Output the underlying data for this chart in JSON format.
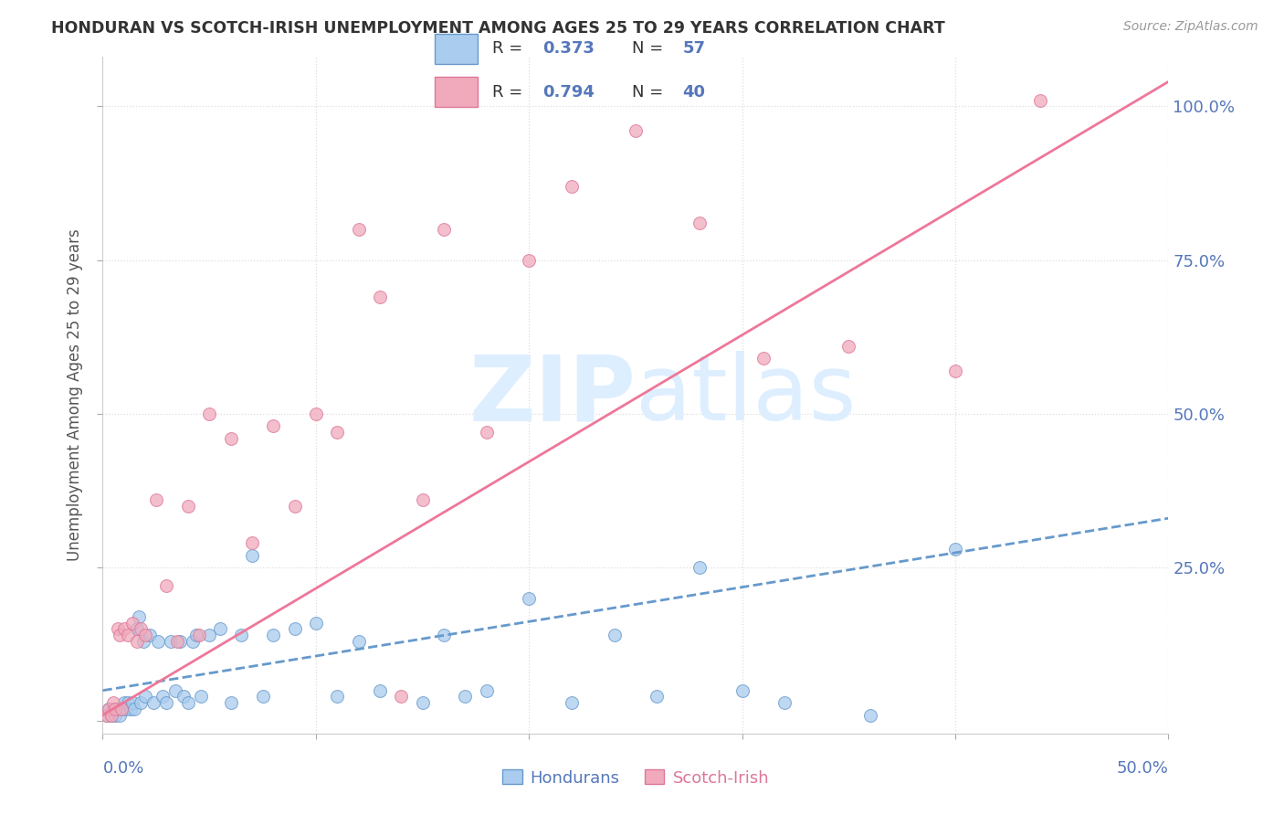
{
  "title": "HONDURAN VS SCOTCH-IRISH UNEMPLOYMENT AMONG AGES 25 TO 29 YEARS CORRELATION CHART",
  "source": "Source: ZipAtlas.com",
  "ylabel": "Unemployment Among Ages 25 to 29 years",
  "xlim": [
    0.0,
    0.5
  ],
  "ylim": [
    -0.02,
    1.08
  ],
  "yticks": [
    0.0,
    0.25,
    0.5,
    0.75,
    1.0
  ],
  "ytick_labels": [
    "",
    "25.0%",
    "50.0%",
    "75.0%",
    "100.0%"
  ],
  "legend_r1": "R = 0.373",
  "legend_n1": "N = 57",
  "legend_r2": "R = 0.794",
  "legend_n2": "N = 40",
  "hondurans_color": "#aaccee",
  "scotch_color": "#f0aabb",
  "hondurans_edge_color": "#6699cc",
  "scotch_edge_color": "#dd7799",
  "hondurans_line_color": "#6699cc",
  "scotch_line_color": "#ee7799",
  "watermark_color": "#ddeeff",
  "background_color": "#ffffff",
  "grid_color": "#dddddd",
  "title_color": "#333333",
  "source_color": "#999999",
  "axis_label_color": "#5577bb",
  "hondurans_x": [
    0.002,
    0.003,
    0.004,
    0.005,
    0.006,
    0.007,
    0.008,
    0.009,
    0.01,
    0.011,
    0.012,
    0.013,
    0.014,
    0.015,
    0.016,
    0.017,
    0.018,
    0.019,
    0.02,
    0.022,
    0.024,
    0.026,
    0.028,
    0.03,
    0.032,
    0.034,
    0.036,
    0.038,
    0.04,
    0.042,
    0.044,
    0.046,
    0.05,
    0.055,
    0.06,
    0.065,
    0.07,
    0.075,
    0.08,
    0.09,
    0.1,
    0.11,
    0.12,
    0.13,
    0.15,
    0.16,
    0.17,
    0.18,
    0.2,
    0.22,
    0.24,
    0.26,
    0.28,
    0.3,
    0.32,
    0.36,
    0.4
  ],
  "hondurans_y": [
    0.01,
    0.02,
    0.01,
    0.02,
    0.01,
    0.02,
    0.01,
    0.02,
    0.03,
    0.02,
    0.03,
    0.02,
    0.03,
    0.02,
    0.15,
    0.17,
    0.03,
    0.13,
    0.04,
    0.14,
    0.03,
    0.13,
    0.04,
    0.03,
    0.13,
    0.05,
    0.13,
    0.04,
    0.03,
    0.13,
    0.14,
    0.04,
    0.14,
    0.15,
    0.03,
    0.14,
    0.27,
    0.04,
    0.14,
    0.15,
    0.16,
    0.04,
    0.13,
    0.05,
    0.03,
    0.14,
    0.04,
    0.05,
    0.2,
    0.03,
    0.14,
    0.04,
    0.25,
    0.05,
    0.03,
    0.01,
    0.28
  ],
  "scotch_x": [
    0.002,
    0.003,
    0.004,
    0.005,
    0.006,
    0.007,
    0.008,
    0.009,
    0.01,
    0.012,
    0.014,
    0.016,
    0.018,
    0.02,
    0.025,
    0.03,
    0.035,
    0.04,
    0.045,
    0.05,
    0.06,
    0.07,
    0.08,
    0.09,
    0.1,
    0.11,
    0.12,
    0.13,
    0.14,
    0.15,
    0.16,
    0.18,
    0.2,
    0.22,
    0.25,
    0.28,
    0.31,
    0.35,
    0.4,
    0.44
  ],
  "scotch_y": [
    0.01,
    0.02,
    0.01,
    0.03,
    0.02,
    0.15,
    0.14,
    0.02,
    0.15,
    0.14,
    0.16,
    0.13,
    0.15,
    0.14,
    0.36,
    0.22,
    0.13,
    0.35,
    0.14,
    0.5,
    0.46,
    0.29,
    0.48,
    0.35,
    0.5,
    0.47,
    0.8,
    0.69,
    0.04,
    0.36,
    0.8,
    0.47,
    0.75,
    0.87,
    0.96,
    0.81,
    0.59,
    0.61,
    0.57,
    1.01
  ],
  "hondurans_line_x": [
    0.0,
    0.5
  ],
  "hondurans_line_y": [
    0.05,
    0.33
  ],
  "scotch_line_x": [
    0.0,
    0.5
  ],
  "scotch_line_y": [
    0.01,
    1.04
  ]
}
